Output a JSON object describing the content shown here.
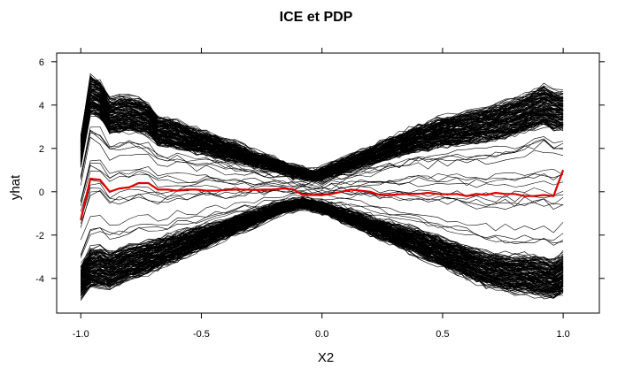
{
  "chart_data": {
    "type": "line",
    "title": "ICE et PDP",
    "xlabel": "X2",
    "ylabel": "yhat",
    "xlim": [
      -1.1,
      1.15
    ],
    "ylim": [
      -5.6,
      6.4
    ],
    "x_ticks": [
      -1.0,
      -0.5,
      0.0,
      0.5,
      1.0
    ],
    "x_tick_labels": [
      "-1.0",
      "-0.5",
      "0.0",
      "0.5",
      "1.0"
    ],
    "y_ticks": [
      -4,
      -2,
      0,
      2,
      4,
      6
    ],
    "y_tick_labels": [
      "-4",
      "-2",
      "0",
      "2",
      "4",
      "6"
    ],
    "grid": false,
    "ice_color": "#000000",
    "pdp_color": "#e00000",
    "x": [
      -1.0,
      -0.96,
      -0.92,
      -0.88,
      -0.84,
      -0.8,
      -0.76,
      -0.72,
      -0.68,
      -0.64,
      -0.6,
      -0.56,
      -0.52,
      -0.48,
      -0.44,
      -0.4,
      -0.36,
      -0.32,
      -0.28,
      -0.24,
      -0.2,
      -0.16,
      -0.12,
      -0.08,
      -0.04,
      0.0,
      0.04,
      0.08,
      0.12,
      0.16,
      0.2,
      0.24,
      0.28,
      0.32,
      0.36,
      0.4,
      0.44,
      0.48,
      0.52,
      0.56,
      0.6,
      0.64,
      0.68,
      0.72,
      0.76,
      0.8,
      0.84,
      0.88,
      0.92,
      0.96,
      1.0
    ],
    "series": [
      {
        "role": "pdp",
        "values": [
          -1.3,
          0.6,
          0.55,
          0.0,
          0.15,
          0.2,
          0.4,
          0.4,
          0.1,
          0.1,
          0.05,
          0.1,
          0.1,
          0.05,
          0.05,
          0.08,
          0.1,
          0.1,
          0.08,
          0.1,
          0.1,
          0.15,
          0.12,
          -0.15,
          -0.15,
          -0.15,
          -0.1,
          0.0,
          0.1,
          0.05,
          0.0,
          -0.15,
          -0.15,
          -0.12,
          -0.1,
          -0.1,
          -0.05,
          -0.1,
          -0.12,
          -0.1,
          -0.2,
          -0.1,
          -0.15,
          -0.05,
          -0.1,
          -0.1,
          -0.2,
          -0.2,
          -0.15,
          -0.2,
          1.0
        ]
      }
    ],
    "ice_band": {
      "count": 300,
      "upper_envelope": [
        2.5,
        5.3,
        5.1,
        4.2,
        4.3,
        4.3,
        4.2,
        4.0,
        3.4,
        3.3,
        3.2,
        3.0,
        2.8,
        2.7,
        2.5,
        2.3,
        2.2,
        2.0,
        1.8,
        1.6,
        1.5,
        1.3,
        1.1,
        1.0,
        0.9,
        1.0,
        1.2,
        1.4,
        1.6,
        1.8,
        2.0,
        2.2,
        2.4,
        2.6,
        2.8,
        3.0,
        3.1,
        3.3,
        3.4,
        3.5,
        3.6,
        3.7,
        3.8,
        3.9,
        4.1,
        4.2,
        4.4,
        4.6,
        4.8,
        4.6,
        4.5
      ],
      "lower_envelope": [
        -4.8,
        -4.4,
        -4.3,
        -4.4,
        -4.2,
        -4.0,
        -3.9,
        -3.7,
        -3.5,
        -3.3,
        -3.1,
        -2.9,
        -2.7,
        -2.5,
        -2.3,
        -2.1,
        -1.9,
        -1.7,
        -1.5,
        -1.3,
        -1.1,
        -0.9,
        -0.8,
        -0.7,
        -0.8,
        -0.9,
        -1.1,
        -1.3,
        -1.5,
        -1.7,
        -1.9,
        -2.1,
        -2.3,
        -2.5,
        -2.7,
        -2.9,
        -3.1,
        -3.3,
        -3.5,
        -3.7,
        -3.9,
        -4.1,
        -4.3,
        -4.4,
        -4.5,
        -4.6,
        -4.6,
        -4.7,
        -4.8,
        -4.9,
        -4.6
      ]
    }
  }
}
